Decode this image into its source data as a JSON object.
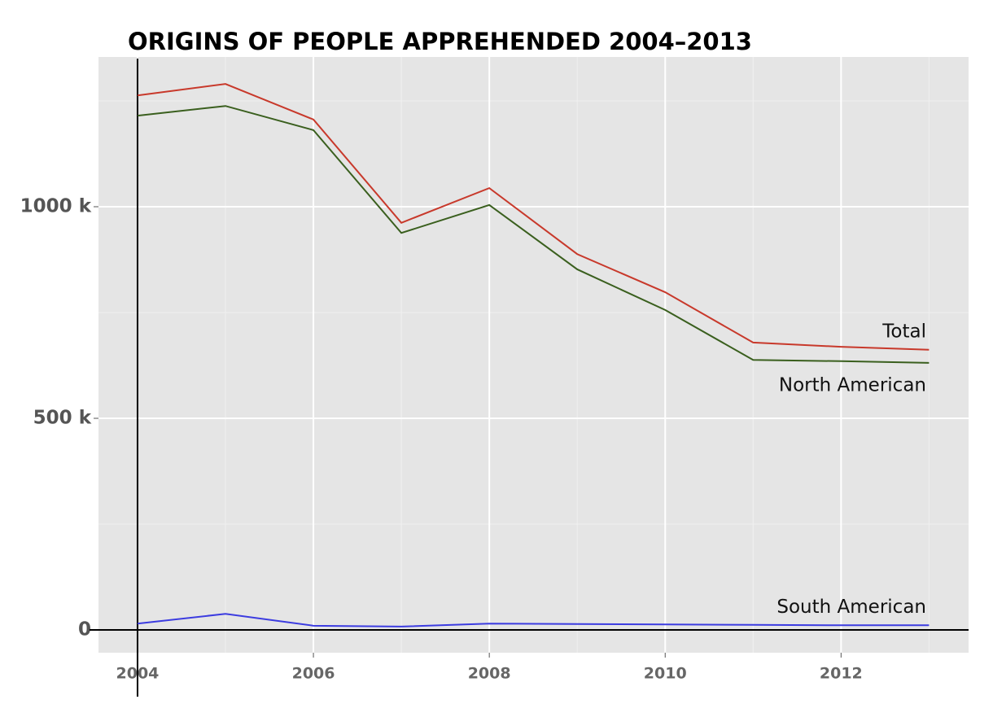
{
  "chart_data": {
    "type": "line",
    "title": "ORIGINS OF PEOPLE APPREHENDED 2004–2013",
    "x": [
      2004,
      2005,
      2006,
      2007,
      2008,
      2009,
      2010,
      2011,
      2012,
      2013
    ],
    "series": [
      {
        "name": "Total",
        "color": "#c8392b",
        "values": [
          1263000,
          1290000,
          1206000,
          962000,
          1044000,
          888000,
          798000,
          679000,
          669000,
          662000
        ]
      },
      {
        "name": "North American",
        "color": "#3a5f1e",
        "values": [
          1215000,
          1238000,
          1181000,
          938000,
          1004000,
          852000,
          756000,
          638000,
          635000,
          631000
        ]
      },
      {
        "name": "South American",
        "color": "#3c3ce0",
        "values": [
          15000,
          38000,
          10000,
          8000,
          15000,
          14000,
          13000,
          12000,
          11000,
          11000
        ]
      }
    ],
    "xlim": [
      2003.556,
      2013.45
    ],
    "xticks": [
      2004,
      2006,
      2008,
      2010,
      2012
    ],
    "ylim": [
      -53800,
      1353800
    ],
    "yticks": [
      0,
      {
        "value": 500000,
        "label": "500 k"
      },
      {
        "value": 1000000,
        "label": "1000 k"
      }
    ],
    "grid": true
  }
}
